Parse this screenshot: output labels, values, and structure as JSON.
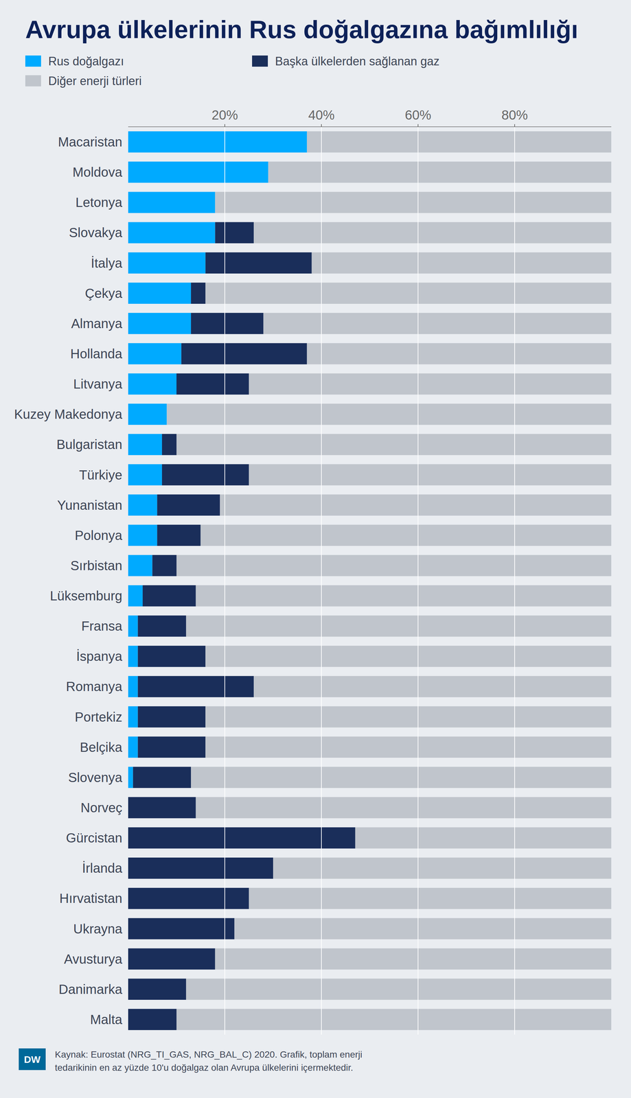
{
  "chart_data": {
    "type": "bar",
    "orientation": "horizontal",
    "stacked": true,
    "title": "Avrupa ülkelerinin Rus doğalgazına bağımlılığı",
    "annotations": [
      "Kaynak: Eurostat (NRG_TI_GAS,  NRG_BAL_C) 2020. Grafik, toplam enerji\ntedarikinin en az yüzde 10'u doğalgaz olan Avrupa ülkelerini içermektedir.",
      "DW"
    ],
    "categories": [
      "Macaristan",
      "Moldova",
      "Letonya",
      "Slovakya",
      "İtalya",
      "Çekya",
      "Almanya",
      "Hollanda",
      "Litvanya",
      "Kuzey Makedonya",
      "Bulgaristan",
      "Türkiye",
      "Yunanistan",
      "Polonya",
      "Sırbistan",
      "Lüksemburg",
      "Fransa",
      "İspanya",
      "Romanya",
      "Portekiz",
      "Belçika",
      "Slovenya",
      "Norveç",
      "Gürcistan",
      "İrlanda",
      "Hırvatistan",
      "Ukrayna",
      "Avusturya",
      "Danimarka",
      "Malta"
    ],
    "series": [
      {
        "name": "Rus doğalgazı",
        "color": "#00aaff",
        "values": [
          37,
          29,
          18,
          18,
          16,
          13,
          13,
          11,
          10,
          8,
          7,
          7,
          6,
          6,
          5,
          3,
          2,
          2,
          2,
          2,
          2,
          1,
          0,
          0,
          0,
          0,
          0,
          0,
          0,
          0
        ]
      },
      {
        "name": "Başka ülkelerden sağlanan gaz",
        "color": "#1a2e5a",
        "values": [
          0,
          0,
          0,
          8,
          22,
          3,
          15,
          26,
          15,
          0,
          3,
          18,
          13,
          9,
          5,
          11,
          10,
          14,
          24,
          14,
          14,
          12,
          14,
          47,
          30,
          25,
          22,
          18,
          12,
          10
        ]
      },
      {
        "name": "Diğer enerji türleri",
        "color": "#c0c5cc",
        "values": [
          63,
          71,
          82,
          74,
          62,
          84,
          72,
          63,
          75,
          92,
          90,
          75,
          81,
          85,
          90,
          86,
          88,
          84,
          74,
          84,
          84,
          87,
          86,
          53,
          70,
          75,
          78,
          82,
          88,
          90
        ]
      }
    ],
    "xlim": [
      0,
      100
    ],
    "xticks": [
      {
        "value": 20,
        "label": "20%"
      },
      {
        "value": 40,
        "label": "40%"
      },
      {
        "value": 60,
        "label": "60%"
      },
      {
        "value": 80,
        "label": "80%"
      }
    ],
    "grid": true,
    "legend": "top-left"
  }
}
